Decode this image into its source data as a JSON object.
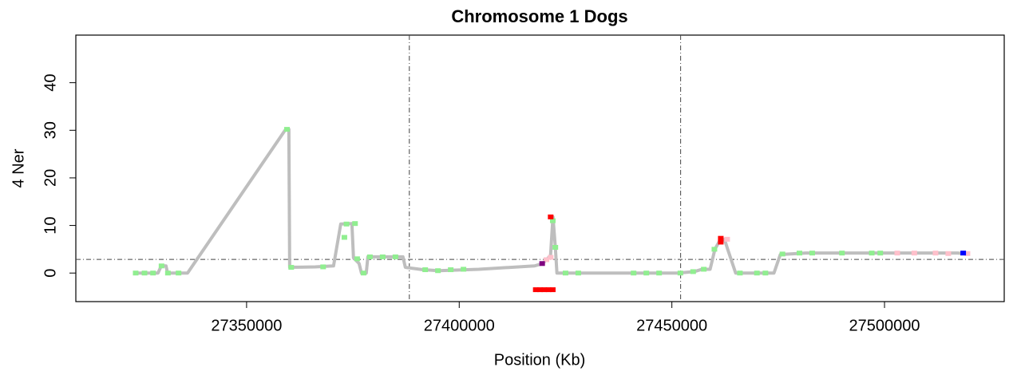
{
  "chart_data": {
    "type": "line",
    "title": "Chromosome 1 Dogs",
    "xlabel": "Position (Kb)",
    "ylabel": "4 Ner",
    "xlim": [
      27309850,
      27528150
    ],
    "ylim": [
      -6,
      50
    ],
    "xticks": [
      27350000,
      27400000,
      27450000,
      27500000
    ],
    "yticks": [
      0,
      10,
      20,
      30,
      40
    ],
    "vlines": [
      27388270,
      27452060
    ],
    "hlines": [
      2.86
    ],
    "refline_color": "#444444",
    "series": [
      {
        "type": "line",
        "color": "#bebebe",
        "x": [
          27323924,
          27329176,
          27329927,
          27331052,
          27331428,
          27336118,
          27359192,
          27359943,
          27360130,
          27366134,
          27370448,
          27372137,
          27374763,
          27375138,
          27376452,
          27377014,
          27378140,
          27378515,
          27386770,
          27387332,
          27391460,
          27395212,
          27404592,
          27417724,
          27419600,
          27421476,
          27422038,
          27422601,
          27422976,
          27438360,
          27451492,
          27455244,
          27457120,
          27458996,
          27460121,
          27461434,
          27462372,
          27463123,
          27465000,
          27474004,
          27475504,
          27481508,
          27498392,
          27517152,
          27519966
        ],
        "values": [
          0,
          0,
          1.5,
          1.5,
          0,
          0,
          30.2,
          30.2,
          1.2,
          1.3,
          1.5,
          10.3,
          10.4,
          3.2,
          2,
          0,
          0,
          3.4,
          3.4,
          1.2,
          0.7,
          0.5,
          0.8,
          1.5,
          2,
          3.7,
          11.8,
          5.4,
          0,
          0,
          0,
          0.3,
          0.8,
          0.8,
          5,
          7.1,
          7.1,
          5,
          0,
          0,
          3.9,
          4.2,
          4.2,
          4.2,
          4
        ]
      },
      {
        "type": "scatter",
        "color": "#90ee90",
        "x": [
          27323924,
          27326000,
          27328000,
          27330000,
          27331500,
          27334000,
          27359500,
          27360500,
          27368000,
          27373000,
          27373500,
          27375500,
          27376000,
          27377500,
          27379000,
          27382000,
          27385000,
          27392000,
          27395000,
          27398000,
          27401000,
          27422000,
          27422600,
          27425000,
          27428000,
          27441000,
          27444000,
          27447000,
          27452000,
          27455000,
          27457500,
          27460000,
          27466000,
          27470000,
          27472000,
          27476000,
          27480000,
          27483000,
          27490000,
          27497000,
          27499000
        ],
        "values": [
          0,
          0,
          0,
          1.5,
          0,
          0,
          30.2,
          1.2,
          1.3,
          7.5,
          10.3,
          10.4,
          3,
          0,
          3.4,
          3.4,
          3.4,
          0.7,
          0.5,
          0.7,
          0.8,
          11,
          5.4,
          0,
          0,
          0,
          0,
          0,
          0,
          0.3,
          0.8,
          5,
          0,
          0,
          0,
          4,
          4.2,
          4.2,
          4.2,
          4.2,
          4.2
        ]
      },
      {
        "type": "scatter",
        "color": "#ffc0cb",
        "x": [
          27420500,
          27421500,
          27463000,
          27503000,
          27507000,
          27512000,
          27515000,
          27519500
        ],
        "values": [
          2.8,
          3.3,
          7.1,
          4.2,
          4.2,
          4.2,
          4.1,
          4.1
        ]
      },
      {
        "type": "scatter",
        "color": "#ff0000",
        "x": [
          27421500,
          27461500,
          27461500,
          27418000,
          27419000,
          27420000,
          27421000,
          27422000
        ],
        "values": [
          11.8,
          7.3,
          6.5,
          -3.5,
          -3.5,
          -3.5,
          -3.5,
          -3.5
        ]
      },
      {
        "type": "scatter",
        "color": "#0000ff",
        "x": [
          27518500
        ],
        "values": [
          4.2
        ]
      },
      {
        "type": "scatter",
        "color": "#800080",
        "x": [
          27419500
        ],
        "values": [
          2
        ]
      }
    ]
  }
}
